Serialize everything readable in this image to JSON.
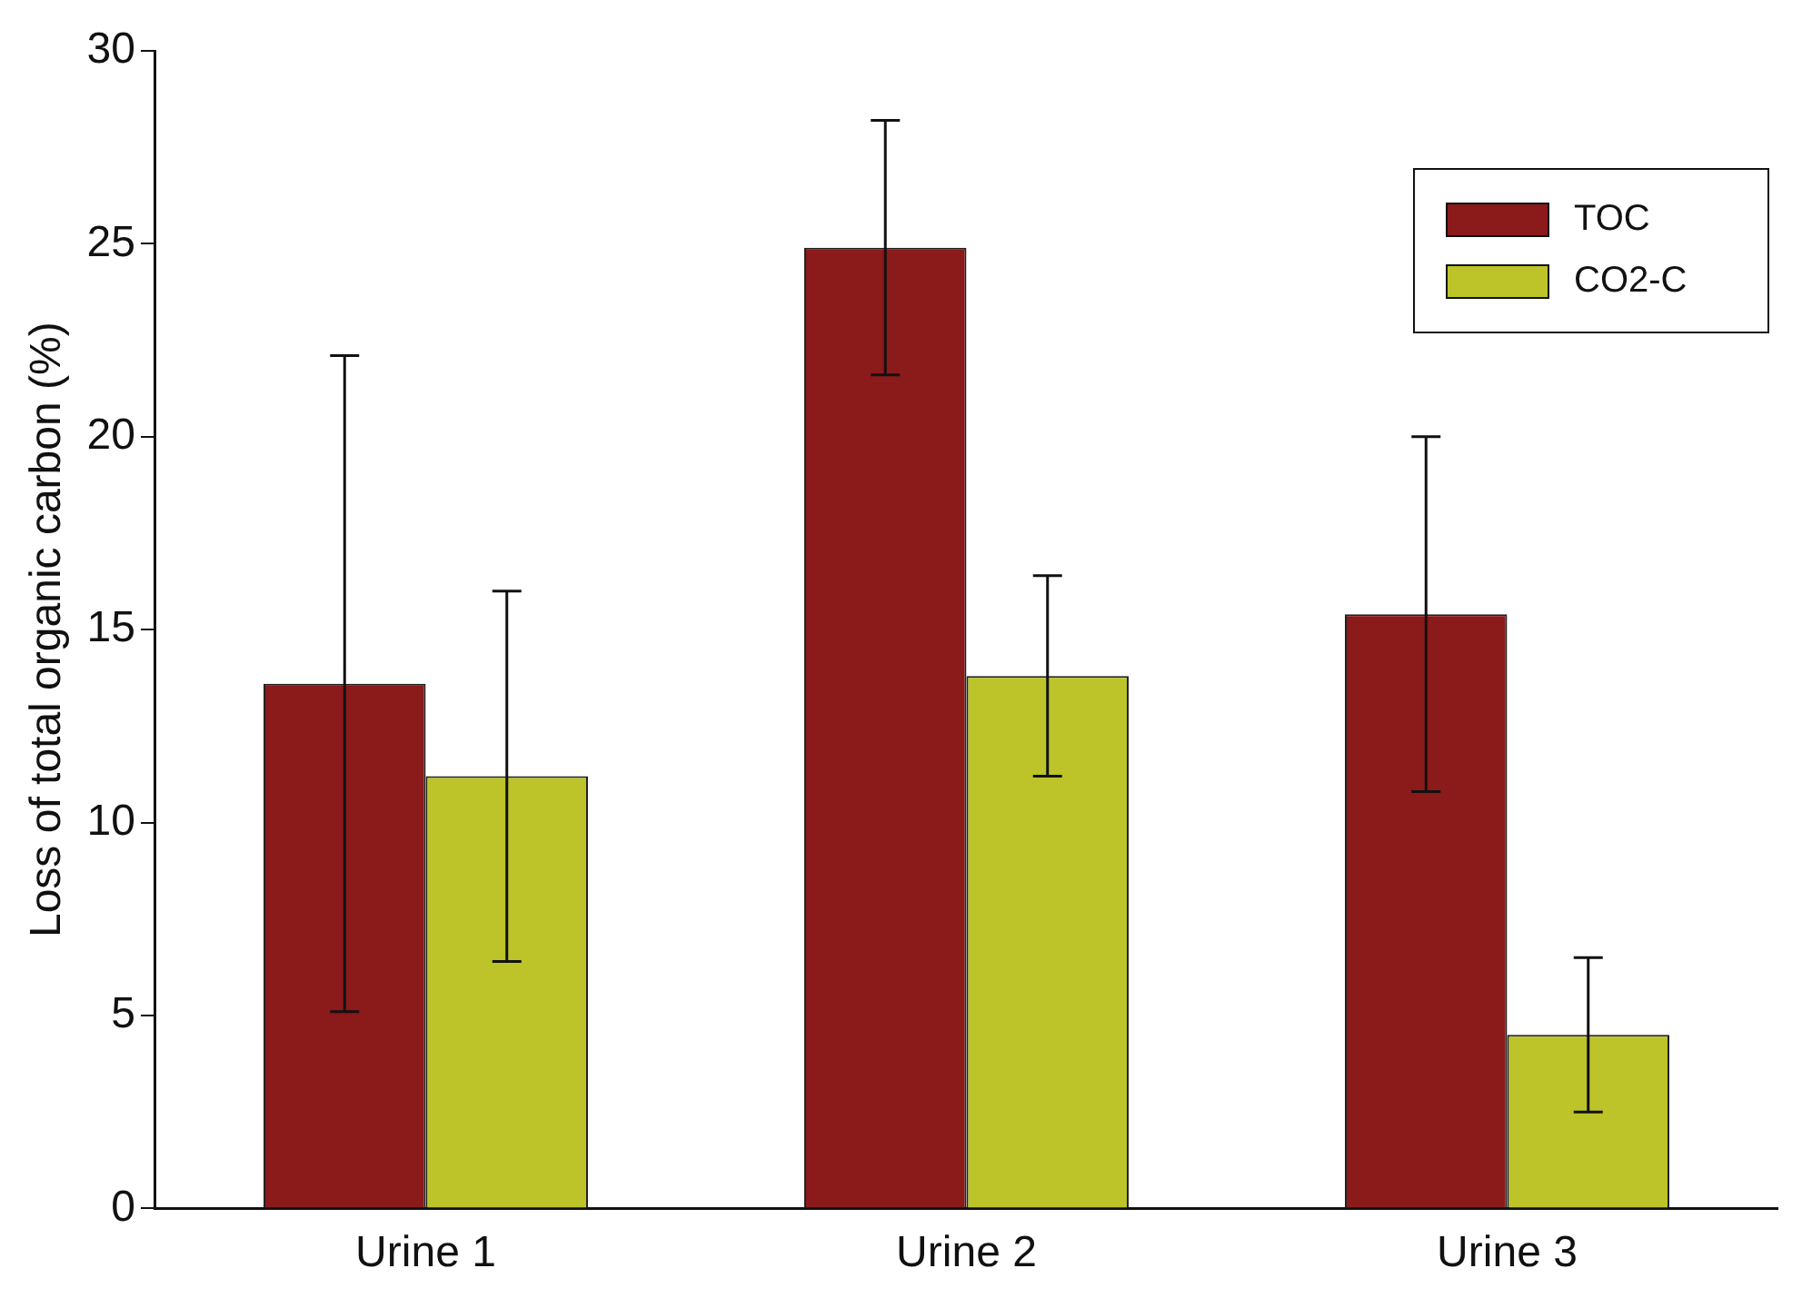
{
  "chart_data": {
    "type": "bar",
    "ylabel": "Loss of total organic carbon (%)",
    "categories": [
      "Urine 1",
      "Urine 2",
      "Urine 3"
    ],
    "series": [
      {
        "name": "TOC",
        "color": "#8b1a1a",
        "values": [
          13.6,
          24.9,
          15.4
        ],
        "errors": [
          8.5,
          3.3,
          4.6
        ]
      },
      {
        "name": "CO2-C",
        "color": "#bcc42a",
        "values": [
          11.2,
          13.8,
          4.5
        ],
        "errors": [
          4.8,
          2.6,
          2.0
        ]
      }
    ],
    "ylim": [
      0,
      30
    ],
    "yticks": [
      0,
      5,
      10,
      15,
      20,
      25,
      30
    ],
    "grid": false,
    "legend": "top right"
  }
}
